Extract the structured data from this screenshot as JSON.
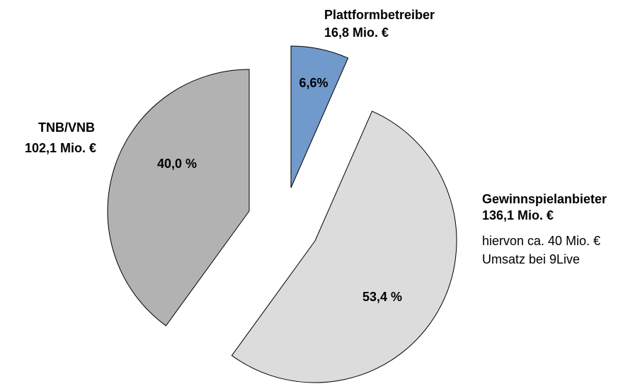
{
  "chart_data": {
    "type": "pie",
    "categories": [
      "Plattformbetreiber",
      "Gewinnspielanbieter",
      "TNB/VNB"
    ],
    "values": [
      6.6,
      53.4,
      40.0
    ],
    "value_labels": [
      "6,6%",
      "53,4 %",
      "40,0 %"
    ],
    "amounts": [
      "16,8 Mio. €",
      "136,1 Mio. €",
      "102,1 Mio. €"
    ],
    "colors": [
      "#7099cc",
      "#dcdcdc",
      "#b2b2b2"
    ],
    "annotation": [
      "hiervon ca. 40 Mio. €",
      "Umsatz bei 9Live"
    ]
  }
}
